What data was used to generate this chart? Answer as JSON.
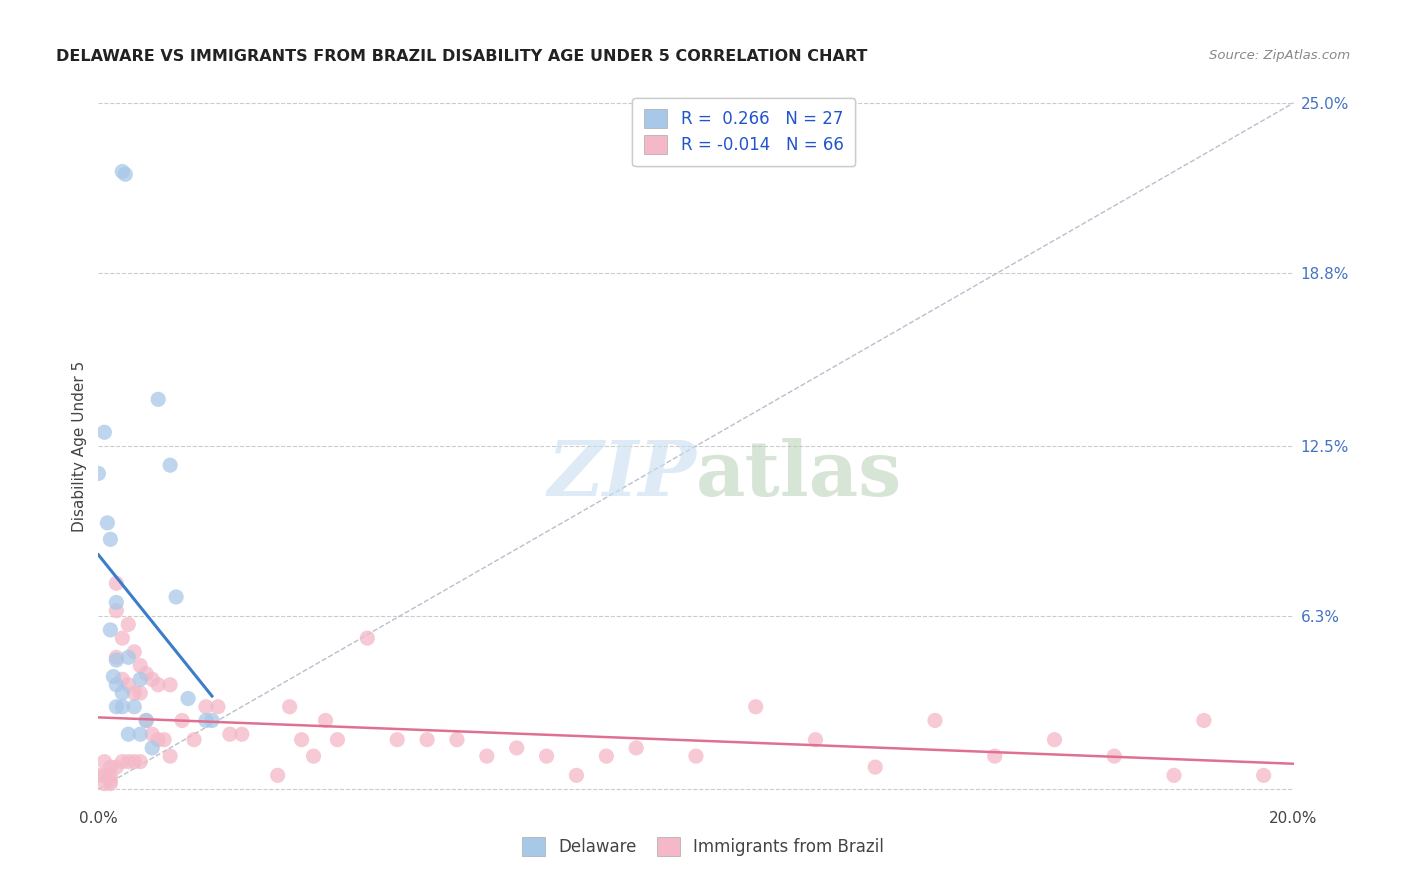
{
  "title": "DELAWARE VS IMMIGRANTS FROM BRAZIL DISABILITY AGE UNDER 5 CORRELATION CHART",
  "source": "Source: ZipAtlas.com",
  "ylabel": "Disability Age Under 5",
  "xlim": [
    0.0,
    0.2
  ],
  "ylim": [
    -0.005,
    0.255
  ],
  "yticks_right": [
    0.0,
    0.063,
    0.125,
    0.188,
    0.25
  ],
  "yticklabels_right": [
    "",
    "6.3%",
    "12.5%",
    "18.8%",
    "25.0%"
  ],
  "legend_R1": "0.266",
  "legend_N1": "27",
  "legend_R2": "-0.014",
  "legend_N2": "66",
  "color_blue": "#a8c8e8",
  "color_pink": "#f4b8c8",
  "color_blue_line": "#3b7dc8",
  "color_pink_line": "#e07090",
  "color_diag": "#b0b8c8",
  "legend_label1": "Delaware",
  "legend_label2": "Immigrants from Brazil",
  "blue_x": [
    0.004,
    0.0045,
    0.0,
    0.001,
    0.0015,
    0.002,
    0.002,
    0.0025,
    0.003,
    0.003,
    0.003,
    0.003,
    0.004,
    0.004,
    0.005,
    0.005,
    0.006,
    0.007,
    0.007,
    0.008,
    0.009,
    0.01,
    0.012,
    0.013,
    0.015,
    0.018,
    0.019
  ],
  "blue_y": [
    0.225,
    0.224,
    0.115,
    0.13,
    0.097,
    0.091,
    0.058,
    0.041,
    0.068,
    0.047,
    0.038,
    0.03,
    0.035,
    0.03,
    0.048,
    0.02,
    0.03,
    0.04,
    0.02,
    0.025,
    0.015,
    0.142,
    0.118,
    0.07,
    0.033,
    0.025,
    0.025
  ],
  "pink_x": [
    0.0,
    0.001,
    0.001,
    0.001,
    0.002,
    0.002,
    0.002,
    0.002,
    0.003,
    0.003,
    0.003,
    0.003,
    0.004,
    0.004,
    0.004,
    0.005,
    0.005,
    0.005,
    0.006,
    0.006,
    0.006,
    0.007,
    0.007,
    0.007,
    0.008,
    0.008,
    0.009,
    0.009,
    0.01,
    0.01,
    0.011,
    0.012,
    0.012,
    0.014,
    0.016,
    0.018,
    0.02,
    0.022,
    0.024,
    0.03,
    0.032,
    0.034,
    0.036,
    0.038,
    0.04,
    0.045,
    0.05,
    0.055,
    0.06,
    0.065,
    0.07,
    0.075,
    0.08,
    0.085,
    0.09,
    0.1,
    0.11,
    0.12,
    0.13,
    0.14,
    0.15,
    0.16,
    0.17,
    0.18,
    0.185,
    0.195
  ],
  "pink_y": [
    0.005,
    0.01,
    0.005,
    0.002,
    0.008,
    0.005,
    0.003,
    0.002,
    0.075,
    0.065,
    0.048,
    0.008,
    0.055,
    0.04,
    0.01,
    0.06,
    0.038,
    0.01,
    0.05,
    0.035,
    0.01,
    0.045,
    0.035,
    0.01,
    0.042,
    0.025,
    0.04,
    0.02,
    0.038,
    0.018,
    0.018,
    0.038,
    0.012,
    0.025,
    0.018,
    0.03,
    0.03,
    0.02,
    0.02,
    0.005,
    0.03,
    0.018,
    0.012,
    0.025,
    0.018,
    0.055,
    0.018,
    0.018,
    0.018,
    0.012,
    0.015,
    0.012,
    0.005,
    0.012,
    0.015,
    0.012,
    0.03,
    0.018,
    0.008,
    0.025,
    0.012,
    0.018,
    0.012,
    0.005,
    0.025,
    0.005
  ],
  "watermark_zip": "ZIP",
  "watermark_atlas": "atlas",
  "background_color": "#ffffff",
  "grid_color": "#cccccc"
}
